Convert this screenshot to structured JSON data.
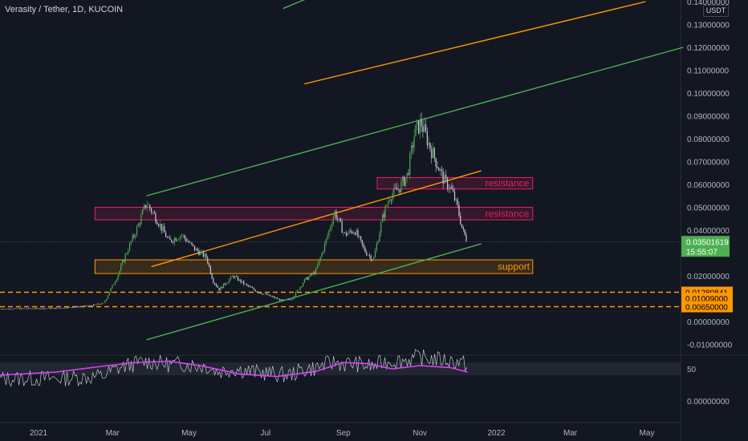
{
  "chart_title": "Verasity / Tether, 1D, KUCOIN",
  "unit_button": "USDT",
  "price_axis": {
    "ticks": [
      {
        "v": 0.14,
        "label": "0.14000000"
      },
      {
        "v": 0.13,
        "label": "0.13000000"
      },
      {
        "v": 0.12,
        "label": "0.12000000"
      },
      {
        "v": 0.11,
        "label": "0.11000000"
      },
      {
        "v": 0.1,
        "label": "0.10000000"
      },
      {
        "v": 0.09,
        "label": "0.09000000"
      },
      {
        "v": 0.08,
        "label": "0.08000000"
      },
      {
        "v": 0.07,
        "label": "0.07000000"
      },
      {
        "v": 0.06,
        "label": "0.06000000"
      },
      {
        "v": 0.05,
        "label": "0.05000000"
      },
      {
        "v": 0.04,
        "label": "0.04000000"
      },
      {
        "v": 0.02,
        "label": "0.02000000"
      },
      {
        "v": 0.0,
        "label": "0.00000000"
      },
      {
        "v": -0.01,
        "label": "-0.01000000"
      }
    ],
    "last_price_label": "0.03501619",
    "countdown_label": "15:55:07",
    "level_labels": [
      {
        "v": 0.0128,
        "label": "0.01280841"
      },
      {
        "v": 0.0101,
        "label": "0.01009000"
      },
      {
        "v": 0.0065,
        "label": "0.00650000"
      }
    ],
    "last_price": 0.035,
    "last_price_color": "#26a69a",
    "level_color": "#ff9800"
  },
  "time_axis": {
    "labels": [
      {
        "t": "2021-01-01",
        "label": "2021"
      },
      {
        "t": "2021-03-01",
        "label": "Mar"
      },
      {
        "t": "2021-05-01",
        "label": "May"
      },
      {
        "t": "2021-07-01",
        "label": "Jul"
      },
      {
        "t": "2021-09-01",
        "label": "Sep"
      },
      {
        "t": "2021-11-01",
        "label": "Nov"
      },
      {
        "t": "2022-01-01",
        "label": "2022"
      },
      {
        "t": "2022-03-01",
        "label": "Mar"
      },
      {
        "t": "2022-05-01",
        "label": "May"
      }
    ]
  },
  "rsi_axis": {
    "labels": [
      {
        "v": 50,
        "label": "50"
      },
      {
        "v": 0,
        "label": "0.00000000"
      }
    ]
  },
  "annotations": [
    {
      "text": "resistance",
      "color": "#e91e63"
    },
    {
      "text": "resistance",
      "color": "#e91e63"
    },
    {
      "text": "support",
      "color": "#ff9800"
    }
  ],
  "colors": {
    "up": "#26a69a",
    "down": "#ef5350",
    "candle_up": "#4caf50",
    "candle_down": "#d1c4e9",
    "channel_green": "#4caf50",
    "channel_orange": "#ff9800",
    "rsi_line": "#c0c4cc",
    "rsi_ma": "#e040fb"
  },
  "chart_data": {
    "type": "candlestick",
    "price_points": [
      {
        "t": "2020-12-01",
        "close": 0.0055
      },
      {
        "t": "2021-01-15",
        "close": 0.0058
      },
      {
        "t": "2021-02-10",
        "close": 0.0068
      },
      {
        "t": "2021-02-22",
        "close": 0.008
      },
      {
        "t": "2021-03-05",
        "close": 0.02
      },
      {
        "t": "2021-03-12",
        "close": 0.03
      },
      {
        "t": "2021-03-20",
        "close": 0.04
      },
      {
        "t": "2021-03-28",
        "close": 0.052
      },
      {
        "t": "2021-04-05",
        "close": 0.045
      },
      {
        "t": "2021-04-15",
        "close": 0.035
      },
      {
        "t": "2021-04-25",
        "close": 0.038
      },
      {
        "t": "2021-05-05",
        "close": 0.032
      },
      {
        "t": "2021-05-15",
        "close": 0.028
      },
      {
        "t": "2021-05-20",
        "close": 0.018
      },
      {
        "t": "2021-05-25",
        "close": 0.014
      },
      {
        "t": "2021-06-05",
        "close": 0.02
      },
      {
        "t": "2021-06-15",
        "close": 0.016
      },
      {
        "t": "2021-06-25",
        "close": 0.013
      },
      {
        "t": "2021-07-05",
        "close": 0.011
      },
      {
        "t": "2021-07-15",
        "close": 0.009
      },
      {
        "t": "2021-07-22",
        "close": 0.01
      },
      {
        "t": "2021-08-01",
        "close": 0.018
      },
      {
        "t": "2021-08-10",
        "close": 0.022
      },
      {
        "t": "2021-08-18",
        "close": 0.035
      },
      {
        "t": "2021-08-25",
        "close": 0.048
      },
      {
        "t": "2021-09-02",
        "close": 0.038
      },
      {
        "t": "2021-09-10",
        "close": 0.04
      },
      {
        "t": "2021-09-18",
        "close": 0.031
      },
      {
        "t": "2021-09-25",
        "close": 0.027
      },
      {
        "t": "2021-10-02",
        "close": 0.045
      },
      {
        "t": "2021-10-08",
        "close": 0.055
      },
      {
        "t": "2021-10-15",
        "close": 0.058
      },
      {
        "t": "2021-10-22",
        "close": 0.064
      },
      {
        "t": "2021-10-28",
        "close": 0.083
      },
      {
        "t": "2021-11-02",
        "close": 0.087
      },
      {
        "t": "2021-11-08",
        "close": 0.078
      },
      {
        "t": "2021-11-14",
        "close": 0.07
      },
      {
        "t": "2021-11-20",
        "close": 0.062
      },
      {
        "t": "2021-11-26",
        "close": 0.058
      },
      {
        "t": "2021-12-01",
        "close": 0.05
      },
      {
        "t": "2021-12-05",
        "close": 0.04
      },
      {
        "t": "2021-12-09",
        "close": 0.035
      }
    ],
    "zones": [
      {
        "label": "resistance",
        "from_t": "2021-09-28",
        "to_t": "2022-01-30",
        "low": 0.058,
        "high": 0.063
      },
      {
        "label": "resistance",
        "from_t": "2021-02-15",
        "to_t": "2022-01-30",
        "low": 0.0445,
        "high": 0.05
      },
      {
        "label": "support",
        "from_t": "2021-02-15",
        "to_t": "2022-01-30",
        "low": 0.021,
        "high": 0.027
      }
    ],
    "trendlines": [
      {
        "color": "green",
        "from": {
          "t": "2021-03-28",
          "v": 0.055
        },
        "to": {
          "t": "2022-05-30",
          "v": 0.12
        }
      },
      {
        "color": "green",
        "from": {
          "t": "2021-03-28",
          "v": -0.008
        },
        "to": {
          "t": "2021-12-20",
          "v": 0.034
        }
      },
      {
        "color": "orange",
        "from": {
          "t": "2021-04-01",
          "v": 0.024
        },
        "to": {
          "t": "2021-12-20",
          "v": 0.066
        }
      },
      {
        "color": "orange",
        "from": {
          "t": "2021-08-01",
          "v": 0.104
        },
        "to": {
          "t": "2022-04-30",
          "v": 0.14
        }
      },
      {
        "color": "green",
        "from": {
          "t": "2021-07-15",
          "v": 0.137
        },
        "to": {
          "t": "2021-08-15",
          "v": 0.144
        }
      }
    ],
    "horizontal_levels": [
      0.0128,
      0.0065
    ],
    "rsi": {
      "ma_points": [
        {
          "t": "2020-12-01",
          "v": 40
        },
        {
          "t": "2021-01-15",
          "v": 45
        },
        {
          "t": "2021-02-25",
          "v": 55
        },
        {
          "t": "2021-03-20",
          "v": 60
        },
        {
          "t": "2021-04-15",
          "v": 62
        },
        {
          "t": "2021-05-10",
          "v": 55
        },
        {
          "t": "2021-06-10",
          "v": 42
        },
        {
          "t": "2021-07-10",
          "v": 38
        },
        {
          "t": "2021-08-10",
          "v": 46
        },
        {
          "t": "2021-09-01",
          "v": 60
        },
        {
          "t": "2021-09-20",
          "v": 58
        },
        {
          "t": "2021-10-10",
          "v": 50
        },
        {
          "t": "2021-11-01",
          "v": 55
        },
        {
          "t": "2021-11-25",
          "v": 52
        },
        {
          "t": "2021-12-09",
          "v": 45
        }
      ],
      "band": [
        40,
        60
      ]
    }
  }
}
